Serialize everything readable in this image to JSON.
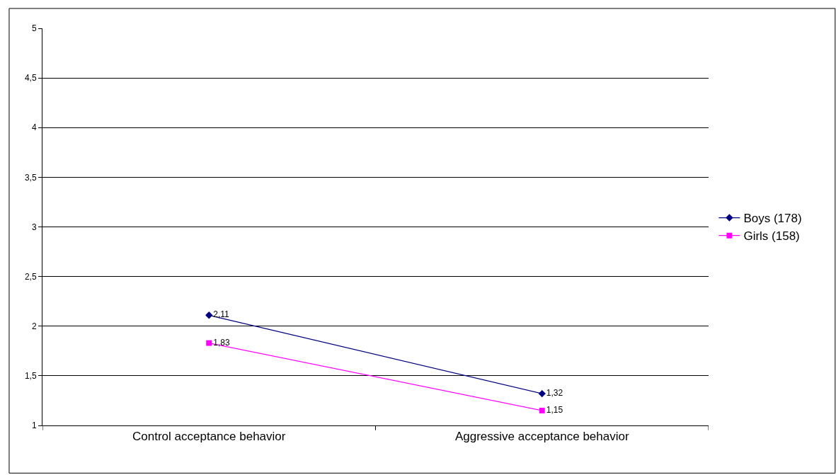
{
  "chart_data": {
    "type": "line",
    "categories": [
      "Control acceptance behavior",
      "Aggressive acceptance behavior"
    ],
    "series": [
      {
        "name": "Boys (178)",
        "color": "#000080",
        "marker": "diamond",
        "values": [
          2.11,
          1.32
        ],
        "value_labels": [
          "2,11",
          "1,32"
        ]
      },
      {
        "name": "Girls (158)",
        "color": "#ff00ff",
        "marker": "square",
        "values": [
          1.83,
          1.15
        ],
        "value_labels": [
          "1,83",
          "1,15"
        ]
      }
    ],
    "ylim": [
      1,
      5
    ],
    "yticks": [
      1,
      {
        "value": 1.5,
        "label": "1,5"
      },
      2,
      {
        "value": 2.5,
        "label": "2,5"
      },
      3,
      {
        "value": 3.5,
        "label": "3,5"
      },
      4,
      {
        "value": 4.5,
        "label": "4,5"
      },
      5
    ],
    "grid": "y",
    "legend": "right",
    "line_style": "solid"
  }
}
